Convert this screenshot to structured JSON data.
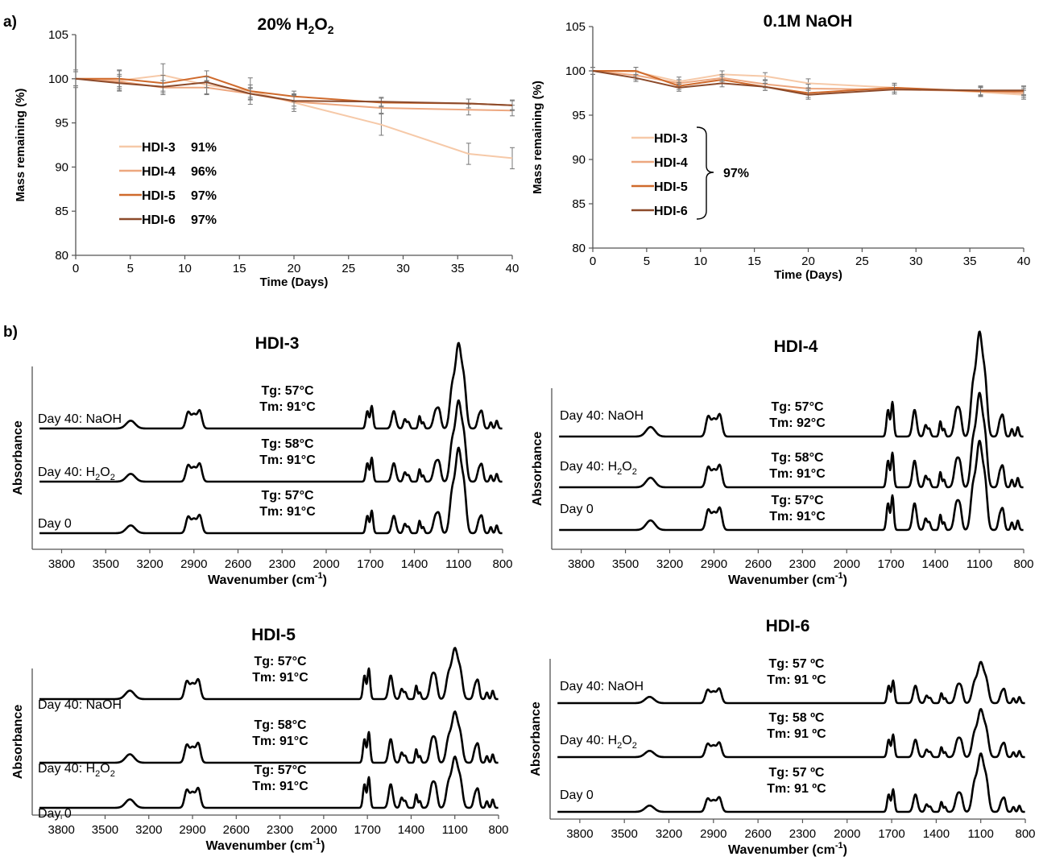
{
  "panel_labels": {
    "a": "a)",
    "b": "b)"
  },
  "colors": {
    "HDI-3": "#f6c9a8",
    "HDI-4": "#eda77f",
    "HDI-5": "#cf6a2c",
    "HDI-6": "#8c4a2a",
    "spectrum": "#000000",
    "errorbar": "#777777"
  },
  "chart_data": [
    {
      "id": "mass-h2o2",
      "type": "line",
      "title": "20% H2O2",
      "title_parts": {
        "main": "20% H",
        "sub1": "2",
        "mid": "O",
        "sub2": "2"
      },
      "xlabel": "Time (Days)",
      "ylabel": "Mass remaining (%)",
      "xlim": [
        0,
        40
      ],
      "ylim": [
        80,
        105
      ],
      "xticks": [
        "0",
        "5",
        "10",
        "15",
        "20",
        "25",
        "30",
        "35",
        "40"
      ],
      "yticks": [
        "80",
        "85",
        "90",
        "95",
        "100",
        "105"
      ],
      "legend_position": "lower-left",
      "series": [
        {
          "name": "HDI-3",
          "final": "91%",
          "x": [
            0,
            4,
            8,
            12,
            16,
            20,
            28,
            36,
            40
          ],
          "y": [
            100,
            99.8,
            100.4,
            99.3,
            98.6,
            97.3,
            94.8,
            91.5,
            91.0
          ],
          "err": [
            1.0,
            1.2,
            1.3,
            1.0,
            1.5,
            1.0,
            1.2,
            1.2,
            1.2
          ]
        },
        {
          "name": "HDI-4",
          "final": "96%",
          "x": [
            0,
            4,
            8,
            12,
            16,
            20,
            28,
            36,
            40
          ],
          "y": [
            100,
            99.7,
            99.0,
            99.0,
            98.3,
            97.4,
            96.7,
            96.5,
            96.4
          ],
          "err": [
            0.8,
            0.8,
            0.8,
            0.8,
            0.7,
            0.8,
            0.6,
            0.6,
            0.6
          ]
        },
        {
          "name": "HDI-5",
          "final": "97%",
          "x": [
            0,
            4,
            8,
            12,
            16,
            20,
            28,
            36,
            40
          ],
          "y": [
            100,
            100.0,
            99.5,
            100.3,
            98.6,
            98.0,
            97.3,
            97.2,
            97.0
          ],
          "err": [
            0.8,
            0.9,
            0.9,
            0.6,
            0.7,
            0.6,
            0.5,
            0.5,
            0.6
          ]
        },
        {
          "name": "HDI-6",
          "final": "97%",
          "x": [
            0,
            4,
            8,
            12,
            16,
            20,
            28,
            36,
            40
          ],
          "y": [
            100,
            99.5,
            99.1,
            99.6,
            98.3,
            97.5,
            97.4,
            97.2,
            97.0
          ],
          "err": [
            0.8,
            0.8,
            0.7,
            0.6,
            0.6,
            0.6,
            0.5,
            0.5,
            0.5
          ]
        }
      ]
    },
    {
      "id": "mass-naoh",
      "type": "line",
      "title": "0.1M NaOH",
      "xlabel": "Time (Days)",
      "ylabel": "Mass remaining (%)",
      "xlim": [
        0,
        40
      ],
      "ylim": [
        80,
        105
      ],
      "xticks": [
        "0",
        "5",
        "10",
        "15",
        "20",
        "25",
        "30",
        "35",
        "40"
      ],
      "yticks": [
        "80",
        "85",
        "90",
        "95",
        "100",
        "105"
      ],
      "legend_position": "lower-left",
      "legend_group_label": "97%",
      "series": [
        {
          "name": "HDI-3",
          "x": [
            0,
            4,
            8,
            12,
            16,
            20,
            28,
            36,
            40
          ],
          "y": [
            100,
            99.9,
            98.8,
            99.6,
            99.4,
            98.6,
            98.1,
            97.6,
            97.3
          ],
          "err": [
            0.4,
            0.5,
            0.5,
            0.4,
            0.4,
            0.5,
            0.5,
            0.5,
            0.5
          ]
        },
        {
          "name": "HDI-4",
          "x": [
            0,
            4,
            8,
            12,
            16,
            20,
            28,
            36,
            40
          ],
          "y": [
            100,
            99.5,
            98.6,
            99.2,
            98.5,
            98.0,
            97.9,
            97.7,
            97.5
          ],
          "err": [
            0.4,
            0.5,
            0.4,
            0.4,
            0.4,
            0.5,
            0.5,
            0.5,
            0.5
          ]
        },
        {
          "name": "HDI-5",
          "x": [
            0,
            4,
            8,
            12,
            16,
            20,
            28,
            36,
            40
          ],
          "y": [
            100,
            100.0,
            98.3,
            99.0,
            98.2,
            97.5,
            98.1,
            97.7,
            97.7
          ],
          "err": [
            0.4,
            0.4,
            0.4,
            0.4,
            0.4,
            0.5,
            0.5,
            0.5,
            0.5
          ]
        },
        {
          "name": "HDI-6",
          "x": [
            0,
            4,
            8,
            12,
            16,
            20,
            28,
            36,
            40
          ],
          "y": [
            100,
            99.2,
            98.1,
            98.6,
            98.2,
            97.3,
            97.9,
            97.8,
            97.8
          ],
          "err": [
            0.4,
            0.4,
            0.4,
            0.4,
            0.4,
            0.5,
            0.5,
            0.5,
            0.5
          ]
        }
      ]
    },
    {
      "id": "ftir-hdi-3",
      "type": "line",
      "title": "HDI-3",
      "xlabel": "Wavenumber (cm-1)",
      "xlabel_main": "Wavenumber (cm",
      "xlabel_sup": "-1",
      "xlabel_end": ")",
      "ylabel": "Absorbance",
      "xlim": [
        4000,
        800
      ],
      "x_reversed": true,
      "xticks": [
        "3800",
        "3500",
        "3200",
        "2900",
        "2600",
        "2300",
        "2000",
        "1700",
        "1400",
        "1100",
        "800"
      ],
      "traces": [
        {
          "label": "Day 40: NaOH",
          "label_main": "Day 40: NaOH",
          "tg": "Tg: 57°C",
          "tm": "Tm: 91°C",
          "peak_scale": 1.0,
          "amide_scale": 0.8
        },
        {
          "label": "Day 40: H2O2",
          "label_main": "Day 40: H",
          "label_sub1": "2",
          "label_mid": "O",
          "label_sub2": "2",
          "tg": "Tg: 58°C",
          "tm": "Tm: 91°C",
          "peak_scale": 0.95,
          "amide_scale": 0.85
        },
        {
          "label": "Day 0",
          "label_main": "Day 0",
          "tg": "Tg: 57°C",
          "tm": "Tm: 91°C",
          "peak_scale": 1.0,
          "amide_scale": 0.8
        }
      ]
    },
    {
      "id": "ftir-hdi-4",
      "type": "line",
      "title": "HDI-4",
      "xlabel": "Wavenumber (cm-1)",
      "xlabel_main": "Wavenumber (cm",
      "xlabel_sup": "-1",
      "xlabel_end": ")",
      "ylabel": "Absorbance",
      "xlim": [
        4000,
        800
      ],
      "x_reversed": true,
      "xticks": [
        "3800",
        "3500",
        "3200",
        "2900",
        "2600",
        "2300",
        "2000",
        "1700",
        "1400",
        "1100",
        "800"
      ],
      "traces": [
        {
          "label": "Day 40: NaOH",
          "label_main": "Day 40: NaOH",
          "tg": "Tg: 57°C",
          "tm": "Tm: 92°C",
          "peak_scale": 1.0,
          "amide_scale": 1.0
        },
        {
          "label": "Day 40: H2O2",
          "label_main": "Day 40: H",
          "label_sub1": "2",
          "label_mid": "O",
          "label_sub2": "2",
          "tg": "Tg: 58°C",
          "tm": "Tm: 91°C",
          "peak_scale": 0.9,
          "amide_scale": 1.0
        },
        {
          "label": "Day 0",
          "label_main": "Day 0",
          "tg": "Tg: 57°C",
          "tm": "Tm: 91°C",
          "peak_scale": 0.85,
          "amide_scale": 1.0
        }
      ]
    },
    {
      "id": "ftir-hdi-5",
      "type": "line",
      "title": "HDI-5",
      "xlabel": "Wavenumber (cm-1)",
      "xlabel_main": "Wavenumber (cm",
      "xlabel_sup": "-1",
      "xlabel_end": ")",
      "ylabel": "Absorbance",
      "xlim": [
        4000,
        800
      ],
      "x_reversed": true,
      "xticks": [
        "3800",
        "3500",
        "3200",
        "2900",
        "2600",
        "2300",
        "2000",
        "1700",
        "1400",
        "1100",
        "800"
      ],
      "traces": [
        {
          "label": "Day 40: NaOH",
          "label_main": "Day 40: NaOH",
          "tg": "Tg: 57°C",
          "tm": "Tm: 91°C",
          "peak_scale": 0.55,
          "amide_scale": 1.0
        },
        {
          "label": "Day 40: H2O2",
          "label_main": "Day 40: H",
          "label_sub1": "2",
          "label_mid": "O",
          "label_sub2": "2",
          "tg": "Tg: 58°C",
          "tm": "Tm: 91°C",
          "peak_scale": 0.55,
          "amide_scale": 1.0
        },
        {
          "label": "Day 0",
          "label_main": "Day 0",
          "tg": "Tg: 57°C",
          "tm": "Tm: 91°C",
          "peak_scale": 0.55,
          "amide_scale": 1.0
        }
      ]
    },
    {
      "id": "ftir-hdi-6",
      "type": "line",
      "title": "HDI-6",
      "xlabel": "Wavenumber (cm-1)",
      "xlabel_main": "Wavenumber (cm",
      "xlabel_sup": "-1",
      "xlabel_end": ")",
      "ylabel": "Absorbance",
      "xlim": [
        4000,
        800
      ],
      "x_reversed": true,
      "xticks": [
        "3800",
        "3500",
        "3200",
        "2900",
        "2600",
        "2300",
        "2000",
        "1700",
        "1400",
        "1100",
        "800"
      ],
      "traces": [
        {
          "label": "Day 40: NaOH",
          "label_main": "Day 40: NaOH",
          "tg": "Tg: 57 ºC",
          "tm": "Tm: 91 ºC",
          "peak_scale": 0.6,
          "amide_scale": 1.0
        },
        {
          "label": "Day 40: H2O2",
          "label_main": "Day 40: H",
          "label_sub1": "2",
          "label_mid": "O",
          "label_sub2": "2",
          "tg": "Tg: 58 ºC",
          "tm": "Tm: 91 ºC",
          "peak_scale": 0.7,
          "amide_scale": 1.0
        },
        {
          "label": "Day 0",
          "label_main": "Day 0",
          "tg": "Tg: 57 ºC",
          "tm": "Tm: 91 ºC",
          "peak_scale": 0.85,
          "amide_scale": 1.0
        }
      ]
    }
  ]
}
